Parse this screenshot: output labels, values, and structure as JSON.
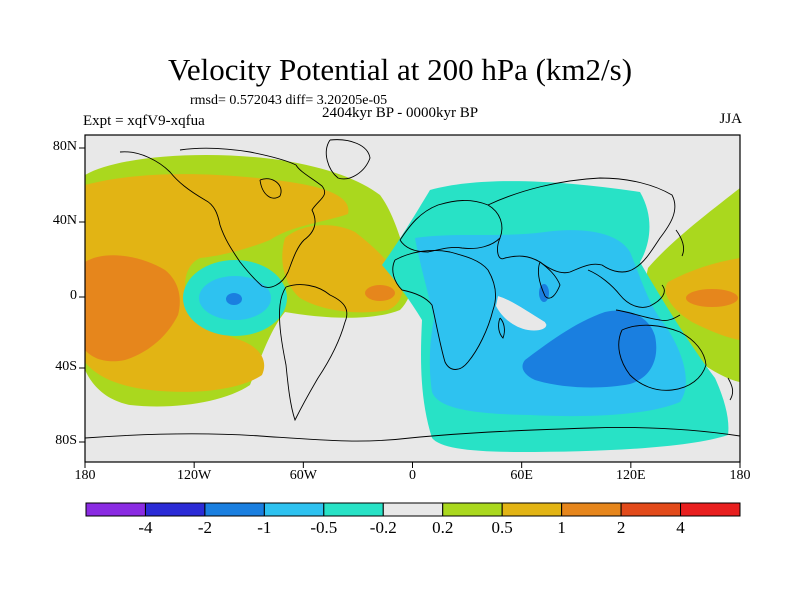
{
  "title": "Velocity Potential at 200 hPa (km2/s)",
  "stats": "rmsd= 0.572043 diff= 3.20205e-05",
  "period": "2404kyr BP - 0000kyr BP",
  "experiment": "Expt = xqfV9-xqfua",
  "season": "JJA",
  "axes": {
    "lat_labels": [
      "80N",
      "40N",
      "0",
      "40S",
      "80S"
    ],
    "lon_labels": [
      "180",
      "120W",
      "60W",
      "0",
      "60E",
      "120E",
      "180"
    ]
  },
  "colorbar": {
    "colors": [
      "#8a2be2",
      "#2b2bd6",
      "#1a7fe0",
      "#2ec2f0",
      "#28e2c6",
      "#e8e8e8",
      "#aad81e",
      "#e2b414",
      "#e6861c",
      "#e24a1a",
      "#e81f1f"
    ],
    "labels": [
      "-4",
      "-2",
      "-1",
      "-0.5",
      "-0.2",
      "0.2",
      "0.5",
      "1",
      "2",
      "4"
    ]
  },
  "map_colors": {
    "background": "#e8e8e8",
    "pos_weak": "#aad81e",
    "pos_mid": "#e2b414",
    "pos_strong": "#e6861c",
    "pos_max": "#e24a1a",
    "neg_weak": "#28e2c6",
    "neg_mid": "#2ec2f0",
    "neg_strong": "#1a7fe0"
  }
}
